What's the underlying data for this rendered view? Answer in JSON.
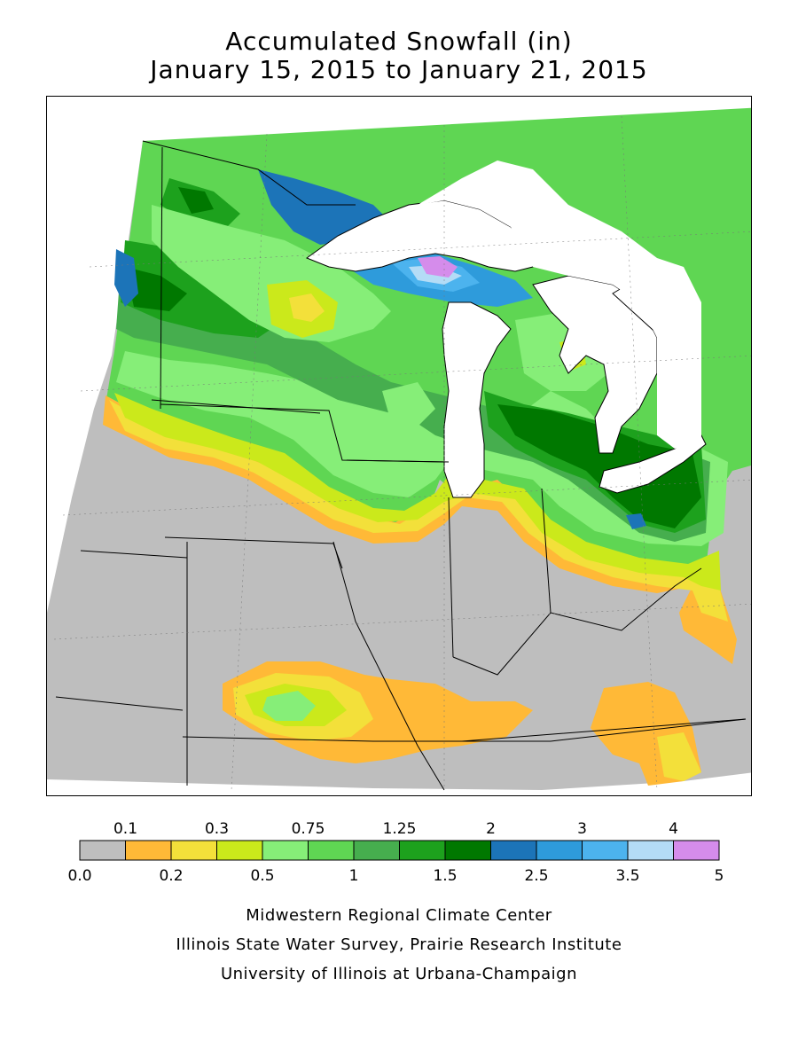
{
  "title_line1": "Accumulated Snowfall (in)",
  "title_line2": "January 15, 2015 to January 21, 2015",
  "legend": {
    "top_labels": [
      "0.1",
      "0.3",
      "0.75",
      "1.25",
      "2",
      "3",
      "4"
    ],
    "bottom_labels": [
      "0.0",
      "0.2",
      "0.5",
      "1",
      "1.5",
      "2.5",
      "3.5",
      "5"
    ],
    "bins": [
      {
        "range": "0.0-0.1",
        "color": "#bebebe"
      },
      {
        "range": "0.1-0.2",
        "color": "#ffb937"
      },
      {
        "range": "0.2-0.3",
        "color": "#f3e03a"
      },
      {
        "range": "0.3-0.5",
        "color": "#cbe91b"
      },
      {
        "range": "0.5-0.75",
        "color": "#86ee78"
      },
      {
        "range": "0.75-1",
        "color": "#5fd653"
      },
      {
        "range": "1-1.25",
        "color": "#46ae4e"
      },
      {
        "range": "1.25-1.5",
        "color": "#1da11d"
      },
      {
        "range": "1.5-2",
        "color": "#007800"
      },
      {
        "range": "2-2.5",
        "color": "#1c74b8"
      },
      {
        "range": "2.5-3",
        "color": "#2e9bdb"
      },
      {
        "range": "3-3.5",
        "color": "#4cb3ee"
      },
      {
        "range": "3.5-4",
        "color": "#b4dcf6"
      },
      {
        "range": "4-5",
        "color": "#d58ceb"
      }
    ]
  },
  "credits": [
    "Midwestern Regional Climate Center",
    "Illinois State Water Survey, Prairie Research Institute",
    "University of Illinois at Urbana-Champaign"
  ]
}
